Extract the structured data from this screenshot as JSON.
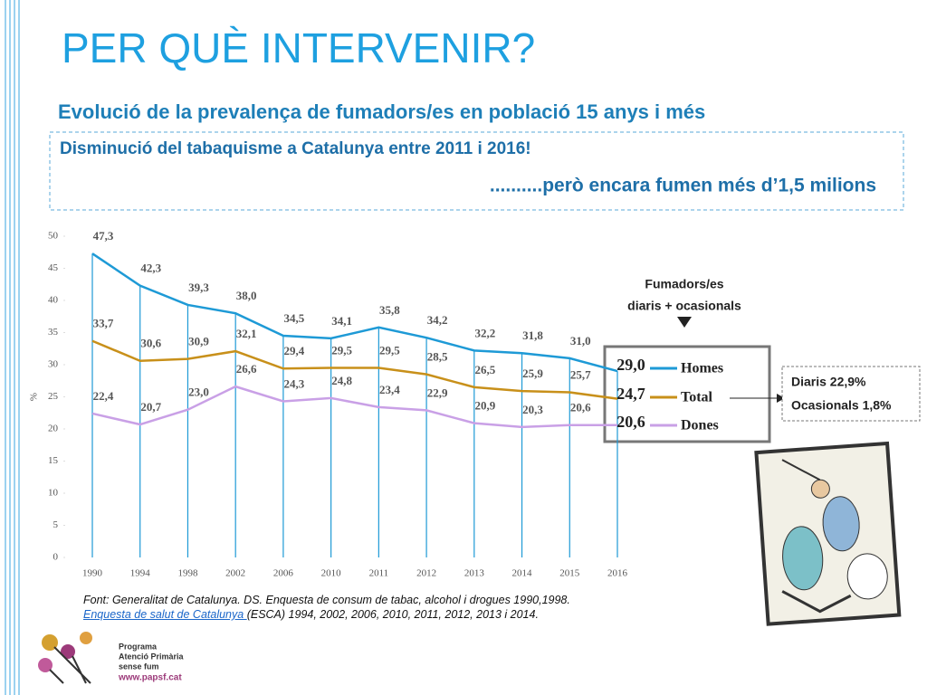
{
  "slide": {
    "title": "PER QUÈ INTERVENIR?",
    "subtitle": "Evolució de la prevalença de fumadors/es en població 15 anys i més",
    "highlight": [
      "Disminució del tabaquisme a Catalunya entre 2011 i 2016!",
      "..........però encara fumen més d’1,5 milions"
    ],
    "annotation": [
      "Fumadors/es",
      "diaris + ocasionals"
    ],
    "side_box": [
      "Diaris 22,9%",
      "Ocasionals 1,8%"
    ],
    "source": {
      "line1": "Font: Generalitat de Catalunya. DS. Enquesta de consum de tabac, alcohol i drogues 1990,1998.",
      "link": "Enquesta de salut de Catalunya ",
      "line2": " (ESCA) 1994, 2002, 2006, 2010, 2011, 2012, 2013 i 2014."
    },
    "logo": [
      "Programa",
      "Atenció Primària",
      "sense fum",
      "www.papsf.cat"
    ]
  },
  "chart_data": {
    "type": "line",
    "ylabel": "%",
    "categories": [
      "1990",
      "1994",
      "1998",
      "2002",
      "2006",
      "2010",
      "2011",
      "2012",
      "2013",
      "2014",
      "2015",
      "2016"
    ],
    "series": [
      {
        "name": "Homes",
        "color": "#1e9ad6",
        "values": [
          47.3,
          42.3,
          39.3,
          38.0,
          34.5,
          34.1,
          35.8,
          34.2,
          32.2,
          31.8,
          31.0,
          29.0
        ],
        "value_labels": [
          "47,3",
          "42,3",
          "39,3",
          "38,0",
          "34,5",
          "34,1",
          "35,8",
          "34,2",
          "32,2",
          "31,8",
          "31,0",
          "29,0"
        ]
      },
      {
        "name": "Total",
        "color": "#c8901a",
        "values": [
          33.7,
          30.6,
          30.9,
          32.1,
          29.4,
          29.5,
          29.5,
          28.5,
          26.5,
          25.9,
          25.7,
          24.7
        ],
        "value_labels": [
          "33,7",
          "30,6",
          "30,9",
          "32,1",
          "29,4",
          "29,5",
          "29,5",
          "28,5",
          "26,5",
          "25,9",
          "25,7",
          "24,7"
        ]
      },
      {
        "name": "Dones",
        "color": "#c9a0e6",
        "values": [
          22.4,
          20.7,
          23.0,
          26.6,
          24.3,
          24.8,
          23.4,
          22.9,
          20.9,
          20.3,
          20.6,
          20.6
        ],
        "value_labels": [
          "22,4",
          "20,7",
          "23,0",
          "26,6",
          "24,3",
          "24,8",
          "23,4",
          "22,9",
          "20,9",
          "20,3",
          "20,6",
          "20,6"
        ]
      }
    ],
    "ylim": [
      0,
      50
    ],
    "yticks": [
      0,
      5,
      10,
      15,
      20,
      25,
      30,
      35,
      40,
      45,
      50
    ]
  }
}
